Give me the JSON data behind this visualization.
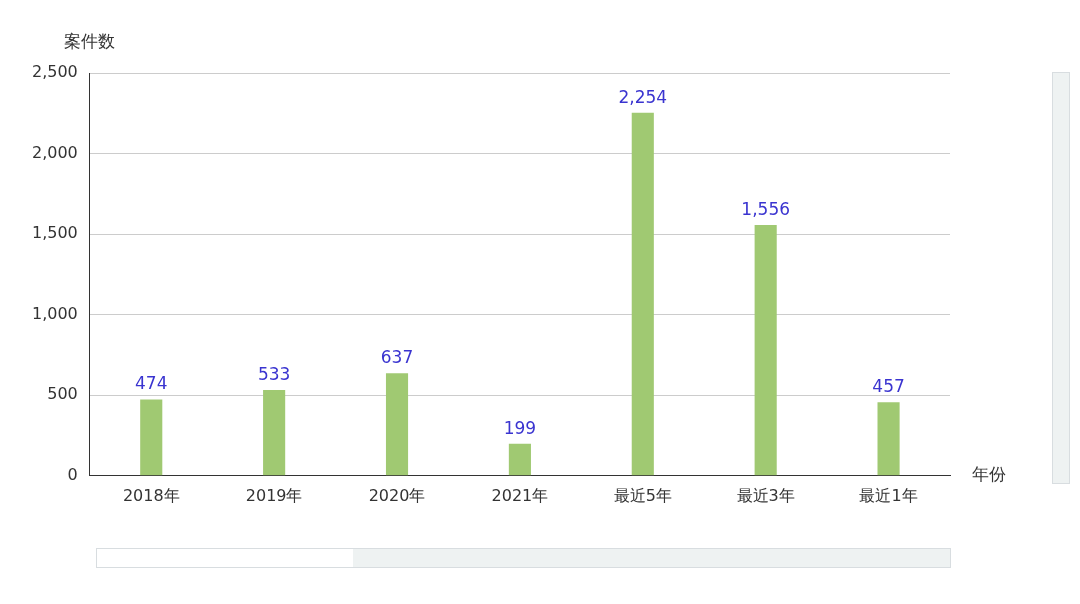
{
  "chart_data": {
    "type": "bar",
    "xlabel": "年份",
    "ylabel": "案件数",
    "categories": [
      "2018年",
      "2019年",
      "2020年",
      "2021年",
      "最近5年",
      "最近3年",
      "最近1年"
    ],
    "values": [
      474,
      533,
      637,
      199,
      2254,
      1556,
      457
    ],
    "value_labels": [
      "474",
      "533",
      "637",
      "199",
      "2,254",
      "1,556",
      "457"
    ],
    "color": "#a0c972",
    "ylim": [
      0,
      2500
    ],
    "yticks": [
      0,
      500,
      {
        "value": 1000,
        "label": "1,000"
      },
      {
        "value": 1500,
        "label": "1,500"
      },
      {
        "value": 2000,
        "label": "2,000"
      },
      {
        "value": 2500,
        "label": "2,500"
      }
    ],
    "grid": "y"
  }
}
